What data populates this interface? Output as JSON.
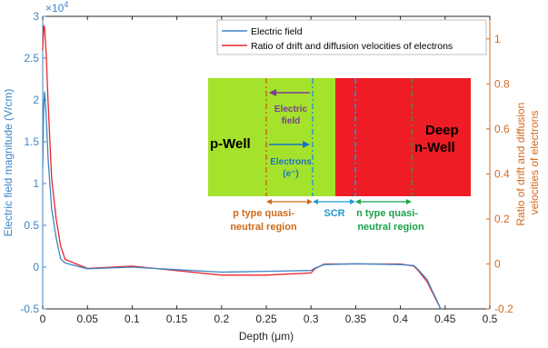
{
  "chart_data": {
    "type": "line",
    "title": "",
    "xlabel": "Depth (μm)",
    "ylabel_left": "Electric field magnitude (V/cm)",
    "ylabel_right": "Ratio of drift and diffusion velocities of electrons",
    "ylabel_right_lines": [
      "Ratio of drift and diffusion",
      "velocities of electrons"
    ],
    "xlim": [
      0,
      0.5
    ],
    "ylim_left": [
      -0.5,
      3
    ],
    "ylim_right": [
      -0.2,
      1.1
    ],
    "left_exponent": "×10",
    "left_exponent_power": "4",
    "xticks": [
      "0",
      "0.05",
      "0.1",
      "0.15",
      "0.2",
      "0.25",
      "0.3",
      "0.35",
      "0.4",
      "0.45",
      "0.5"
    ],
    "yticks_left": [
      "-0.5",
      "0",
      "0.5",
      "1",
      "1.5",
      "2",
      "2.5",
      "3"
    ],
    "yticks_right": [
      "-0.2",
      "0",
      "0.2",
      "0.4",
      "0.6",
      "0.8",
      "1"
    ],
    "grid": false,
    "legend_position": "top-right",
    "colors": {
      "electric_field": "#3d85c6",
      "ratio": "#e8272b",
      "left_axis": "#3d85c6",
      "right_axis": "#d2691e",
      "pwell": "#a5e22b",
      "nwell": "#ee1c25",
      "p_label": "#cc6a1a",
      "scr_label": "#1e9bd7",
      "n_label": "#1aa24a",
      "field_arrow": "#7a3c9a",
      "electron_arrow": "#1a73c8"
    },
    "series": [
      {
        "name": "Electric field",
        "axis": "left",
        "x": [
          0,
          0.001,
          0.002,
          0.004,
          0.006,
          0.01,
          0.015,
          0.02,
          0.025,
          0.05,
          0.1,
          0.15,
          0.2,
          0.25,
          0.3,
          0.305,
          0.315,
          0.35,
          0.4,
          0.415,
          0.42,
          0.43,
          0.435,
          0.44,
          0.445
        ],
        "values": [
          1.2,
          1.9,
          2.1,
          1.8,
          1.3,
          0.7,
          0.35,
          0.1,
          0.05,
          -0.02,
          0.0,
          -0.03,
          -0.06,
          -0.05,
          -0.04,
          -0.01,
          0.03,
          0.04,
          0.03,
          0.02,
          -0.03,
          -0.15,
          -0.27,
          -0.38,
          -0.5
        ]
      },
      {
        "name": "Ratio of drift and diffusion velocities of electrons",
        "axis": "right",
        "x": [
          0,
          0.001,
          0.002,
          0.004,
          0.006,
          0.01,
          0.015,
          0.02,
          0.025,
          0.05,
          0.1,
          0.15,
          0.2,
          0.25,
          0.3,
          0.305,
          0.315,
          0.35,
          0.4,
          0.415,
          0.42,
          0.43,
          0.435,
          0.44,
          0.445
        ],
        "values": [
          0.95,
          1.06,
          1.05,
          0.93,
          0.72,
          0.38,
          0.2,
          0.08,
          0.02,
          -0.02,
          -0.01,
          -0.03,
          -0.05,
          -0.05,
          -0.04,
          -0.02,
          0.0,
          0.0,
          0.0,
          -0.01,
          -0.03,
          -0.08,
          -0.12,
          -0.16,
          -0.2
        ]
      }
    ],
    "inset": {
      "pwell_label": "p-Well",
      "nwell_label_1": "Deep",
      "nwell_label_2": "n-Well",
      "field_label_1": "Electric",
      "field_label_2": "field",
      "electrons_label_1": "Electrons",
      "electrons_label_2": "(e⁻)",
      "p_region_label_1": "p type quasi-",
      "p_region_label_2": "neutral region",
      "scr_label": "SCR",
      "n_region_label_1": "n type quasi-",
      "n_region_label_2": "neutral region"
    }
  }
}
